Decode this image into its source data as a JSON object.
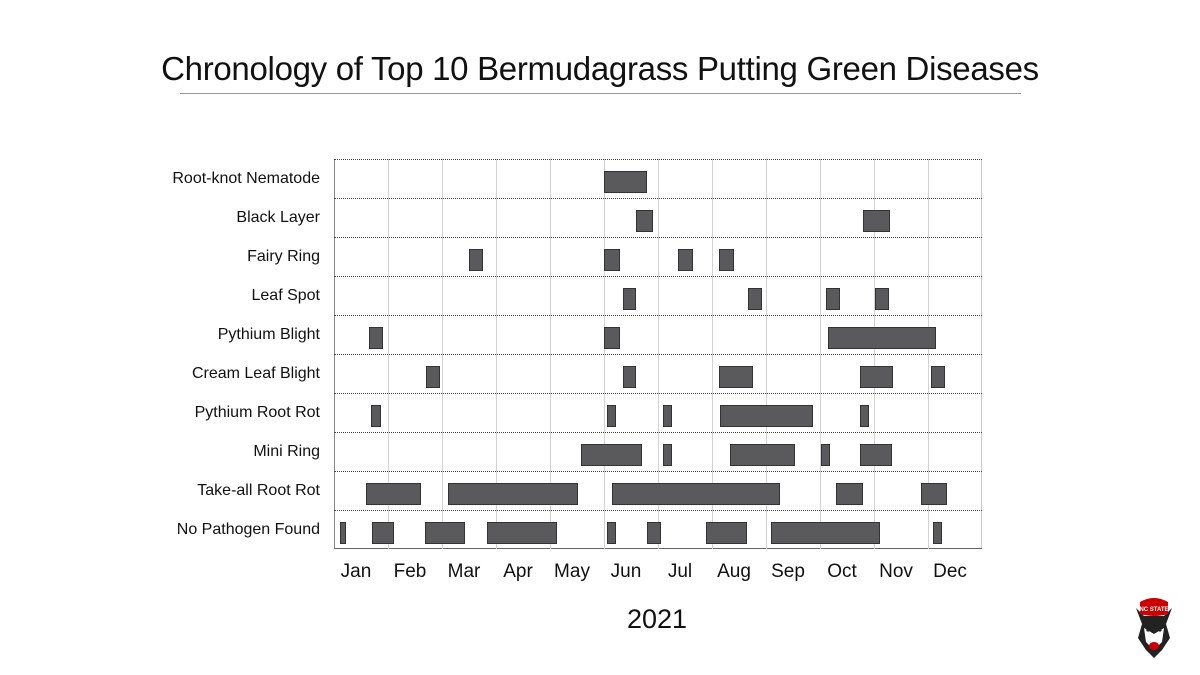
{
  "title": "Chronology of Top 10 Bermudagrass Putting Green Diseases",
  "chart_data": {
    "type": "gantt",
    "title": "Chronology of Top 10 Bermudagrass Putting Green Diseases",
    "xlabel": "2021",
    "ylabel": "",
    "x_ticks": [
      "Jan",
      "Feb",
      "Mar",
      "Apr",
      "May",
      "Jun",
      "Jul",
      "Aug",
      "Sep",
      "Oct",
      "Nov",
      "Dec"
    ],
    "x_unit": "months from Jan 1 (0 = start of Jan, 12 = end of Dec)",
    "xlim": [
      0,
      12
    ],
    "grid": {
      "vertical": "solid light gray at month boundaries",
      "horizontal": "dotted between rows"
    },
    "categories": [
      "Root-knot Nematode",
      "Black Layer",
      "Fairy Ring",
      "Leaf Spot",
      "Pythium Blight",
      "Cream Leaf Blight",
      "Pythium Root Rot",
      "Mini Ring",
      "Take-all Root Rot",
      "No Pathogen Found"
    ],
    "series": [
      {
        "name": "Root-knot Nematode",
        "intervals": [
          [
            5.0,
            5.8
          ]
        ]
      },
      {
        "name": "Black Layer",
        "intervals": [
          [
            5.6,
            5.9
          ],
          [
            9.8,
            10.3
          ]
        ]
      },
      {
        "name": "Fairy Ring",
        "intervals": [
          [
            2.5,
            2.75
          ],
          [
            5.0,
            5.3
          ],
          [
            6.37,
            6.65
          ],
          [
            7.13,
            7.4
          ]
        ]
      },
      {
        "name": "Leaf Spot",
        "intervals": [
          [
            5.35,
            5.6
          ],
          [
            7.67,
            7.93
          ],
          [
            9.11,
            9.37
          ],
          [
            10.02,
            10.28
          ]
        ]
      },
      {
        "name": "Pythium Blight",
        "intervals": [
          [
            0.65,
            0.9
          ],
          [
            5.0,
            5.3
          ],
          [
            9.15,
            11.15
          ]
        ]
      },
      {
        "name": "Cream Leaf Blight",
        "intervals": [
          [
            1.7,
            1.96
          ],
          [
            5.35,
            5.6
          ],
          [
            7.13,
            7.76
          ],
          [
            9.74,
            10.35
          ],
          [
            11.06,
            11.32
          ]
        ]
      },
      {
        "name": "Pythium Root Rot",
        "intervals": [
          [
            0.69,
            0.87
          ],
          [
            5.06,
            5.22
          ],
          [
            6.09,
            6.26
          ],
          [
            7.15,
            8.87
          ],
          [
            9.74,
            9.91
          ]
        ]
      },
      {
        "name": "Mini Ring",
        "intervals": [
          [
            4.57,
            5.7
          ],
          [
            6.09,
            6.26
          ],
          [
            7.33,
            8.54
          ],
          [
            9.02,
            9.19
          ],
          [
            9.74,
            10.33
          ]
        ]
      },
      {
        "name": "Take-all Root Rot",
        "intervals": [
          [
            0.59,
            1.61
          ],
          [
            2.11,
            4.52
          ],
          [
            5.15,
            8.26
          ],
          [
            9.3,
            9.8
          ],
          [
            10.87,
            11.35
          ]
        ]
      },
      {
        "name": "No Pathogen Found",
        "intervals": [
          [
            0.11,
            0.22
          ],
          [
            0.7,
            1.11
          ],
          [
            1.69,
            2.43
          ],
          [
            2.83,
            4.13
          ],
          [
            5.06,
            5.22
          ],
          [
            5.8,
            6.06
          ],
          [
            6.89,
            7.65
          ],
          [
            8.09,
            10.11
          ],
          [
            11.1,
            11.26
          ]
        ]
      }
    ]
  },
  "logo": {
    "name": "nc-state-wolf-logo",
    "text": "NC STATE",
    "accent": "#cc0000"
  },
  "colors": {
    "bar_fill": "#5a5a5c",
    "bar_border": "#333333",
    "grid": "#d2d2d2"
  }
}
